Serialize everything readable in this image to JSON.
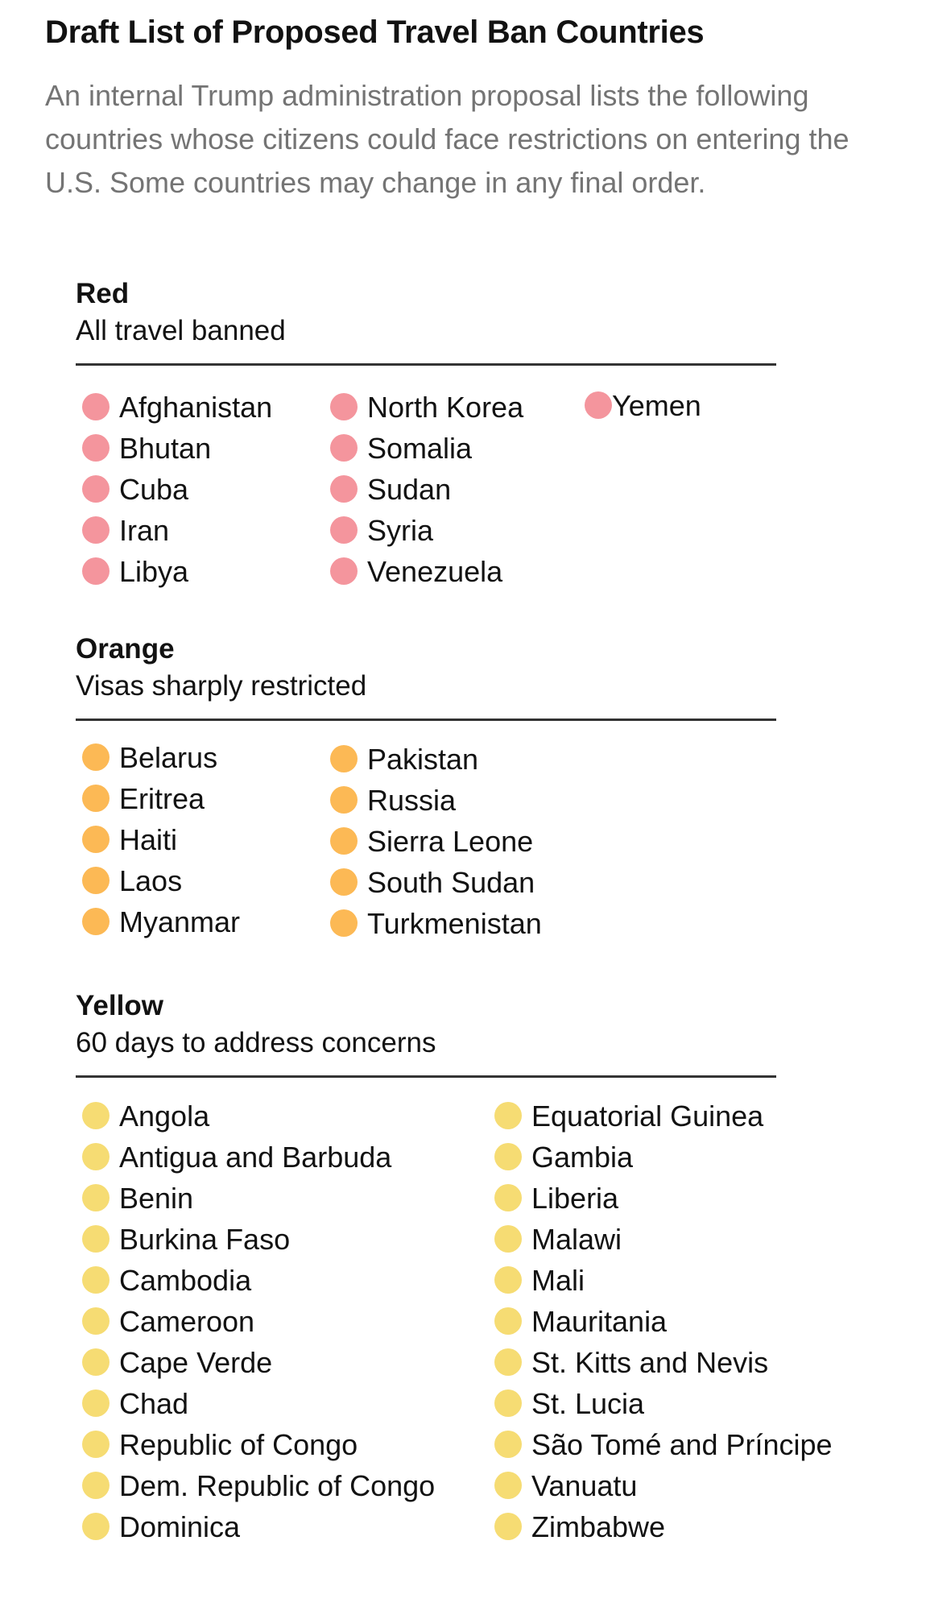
{
  "header": {
    "title": "Draft List of Proposed Travel Ban Countries",
    "subtitle": "An internal Trump administration proposal lists the following countries whose citizens could face restrictions on entering the U.S. Some countries may change in any final order."
  },
  "colors": {
    "red": "#f4959d",
    "orange": "#fcb955",
    "yellow": "#f6dc73"
  },
  "sections": {
    "red": {
      "name": "Red",
      "description": "All travel banned",
      "columns": [
        [
          "Afghanistan",
          "Bhutan",
          "Cuba",
          "Iran",
          "Libya"
        ],
        [
          "North Korea",
          "Somalia",
          "Sudan",
          "Syria",
          "Venezuela"
        ],
        [
          "Yemen"
        ]
      ]
    },
    "orange": {
      "name": "Orange",
      "description": "Visas sharply restricted",
      "columns": [
        [
          "Belarus",
          "Eritrea",
          "Haiti",
          "Laos",
          "Myanmar"
        ],
        [
          "Pakistan",
          "Russia",
          "Sierra Leone",
          "South Sudan",
          "Turkmenistan"
        ]
      ]
    },
    "yellow": {
      "name": "Yellow",
      "description": "60 days to address concerns",
      "columns": [
        [
          "Angola",
          "Antigua and Barbuda",
          "Benin",
          "Burkina Faso",
          "Cambodia",
          "Cameroon",
          "Cape Verde",
          "Chad",
          "Republic of Congo",
          "Dem. Republic of Congo",
          "Dominica"
        ],
        [
          "Equatorial Guinea",
          "Gambia",
          "Liberia",
          "Malawi",
          "Mali",
          "Mauritania",
          "St. Kitts and Nevis",
          "St. Lucia",
          "São Tomé and Príncipe",
          "Vanuatu",
          "Zimbabwe"
        ]
      ]
    }
  }
}
